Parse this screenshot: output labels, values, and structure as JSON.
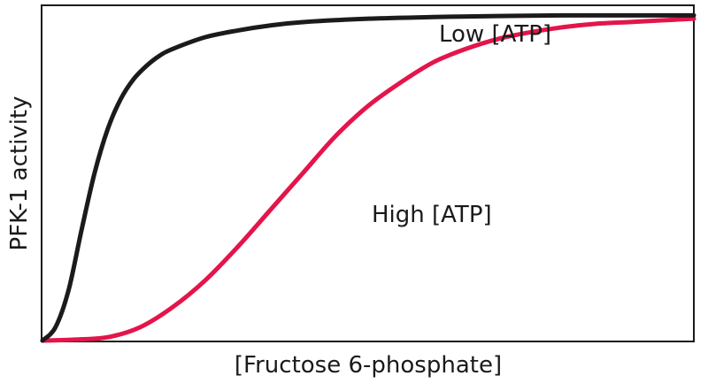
{
  "chart_data": {
    "type": "line",
    "xlabel": "[Fructose 6-phosphate]",
    "ylabel": "PFK-1 activity",
    "xlim": [
      0,
      1
    ],
    "ylim": [
      0,
      1
    ],
    "grid": false,
    "legend": "none",
    "series": [
      {
        "name": "Low [ATP]",
        "color": "#1c1a1a",
        "x": [
          0.0,
          0.02,
          0.04,
          0.06,
          0.08,
          0.1,
          0.12,
          0.14,
          0.16,
          0.18,
          0.2,
          0.25,
          0.3,
          0.35,
          0.4,
          0.5,
          0.6,
          0.7,
          0.8,
          0.9,
          1.0
        ],
        "y": [
          0.0,
          0.04,
          0.15,
          0.33,
          0.5,
          0.63,
          0.72,
          0.78,
          0.82,
          0.85,
          0.87,
          0.905,
          0.925,
          0.94,
          0.95,
          0.96,
          0.965,
          0.968,
          0.97,
          0.97,
          0.97
        ]
      },
      {
        "name": "High [ATP]",
        "color": "#e3154a",
        "x": [
          0.0,
          0.05,
          0.1,
          0.15,
          0.2,
          0.25,
          0.3,
          0.35,
          0.4,
          0.45,
          0.5,
          0.55,
          0.6,
          0.65,
          0.7,
          0.75,
          0.8,
          0.85,
          0.9,
          0.95,
          1.0
        ],
        "y": [
          0.0,
          0.003,
          0.01,
          0.04,
          0.1,
          0.18,
          0.28,
          0.39,
          0.5,
          0.61,
          0.7,
          0.77,
          0.83,
          0.87,
          0.9,
          0.92,
          0.935,
          0.945,
          0.95,
          0.955,
          0.96
        ]
      }
    ]
  }
}
